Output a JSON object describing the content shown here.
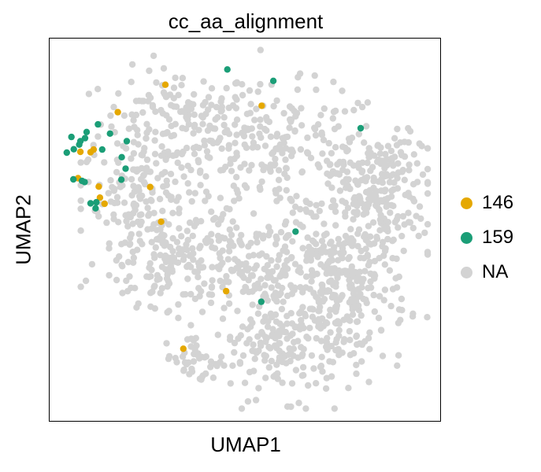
{
  "chart_data": {
    "type": "scatter",
    "title": "cc_aa_alignment",
    "xlabel": "UMAP1",
    "ylabel": "UMAP2",
    "grid": false,
    "legend_position": "right",
    "xlim": [
      0,
      100
    ],
    "ylim": [
      0,
      100
    ],
    "background": {
      "name": "NA",
      "color": "#d3d3d3",
      "clusters": [
        {
          "cx": 33,
          "cy": 78,
          "rx": 20,
          "ry": 14,
          "n": 160
        },
        {
          "cx": 23,
          "cy": 60,
          "rx": 15,
          "ry": 13,
          "n": 120
        },
        {
          "cx": 60,
          "cy": 70,
          "rx": 27,
          "ry": 17,
          "n": 230
        },
        {
          "cx": 83,
          "cy": 56,
          "rx": 14,
          "ry": 15,
          "n": 170
        },
        {
          "cx": 55,
          "cy": 40,
          "rx": 26,
          "ry": 16,
          "n": 240
        },
        {
          "cx": 76,
          "cy": 35,
          "rx": 16,
          "ry": 15,
          "n": 180
        },
        {
          "cx": 62,
          "cy": 19,
          "rx": 20,
          "ry": 13,
          "n": 190
        },
        {
          "cx": 30,
          "cy": 42,
          "rx": 17,
          "ry": 12,
          "n": 140
        },
        {
          "cx": 38,
          "cy": 16,
          "rx": 9,
          "ry": 7,
          "n": 40
        },
        {
          "cx": 86,
          "cy": 67,
          "rx": 9,
          "ry": 9,
          "n": 60
        }
      ]
    },
    "series": [
      {
        "name": "146",
        "color": "#e5a800",
        "x": [
          7.3,
          12.6,
          7.9,
          10.5,
          11.3,
          12.9,
          14.1,
          17.5,
          25.8,
          28.6,
          54.4,
          29.7,
          45.3,
          34.3
        ],
        "y": [
          63.4,
          61.2,
          70.3,
          70.2,
          70.9,
          58.3,
          56.7,
          80.7,
          61.1,
          52.0,
          82.4,
          87.9,
          33.8,
          18.7
        ]
      },
      {
        "name": "159",
        "color": "#1b9e77",
        "x": [
          4.4,
          6.2,
          7.9,
          9.5,
          12.4,
          15.5,
          19.8,
          9.1,
          7.6,
          5.6,
          13.5,
          18.5,
          19.5,
          18.4,
          6.1,
          8.3,
          9.0,
          10.5,
          12.0,
          11.8,
          45.6,
          57.4,
          79.8,
          63.1,
          54.3
        ],
        "y": [
          70.1,
          71.0,
          73.1,
          75.5,
          77.5,
          75.1,
          73.1,
          73.9,
          72.2,
          74.2,
          70.9,
          68.9,
          65.9,
          63.0,
          63.1,
          62.7,
          62.4,
          56.8,
          57.1,
          55.5,
          91.9,
          88.9,
          76.5,
          49.4,
          31.0
        ]
      }
    ]
  },
  "legend": {
    "items": [
      {
        "label": "146",
        "color": "#e5a800"
      },
      {
        "label": "159",
        "color": "#1b9e77"
      },
      {
        "label": "NA",
        "color": "#d3d3d3"
      }
    ]
  }
}
